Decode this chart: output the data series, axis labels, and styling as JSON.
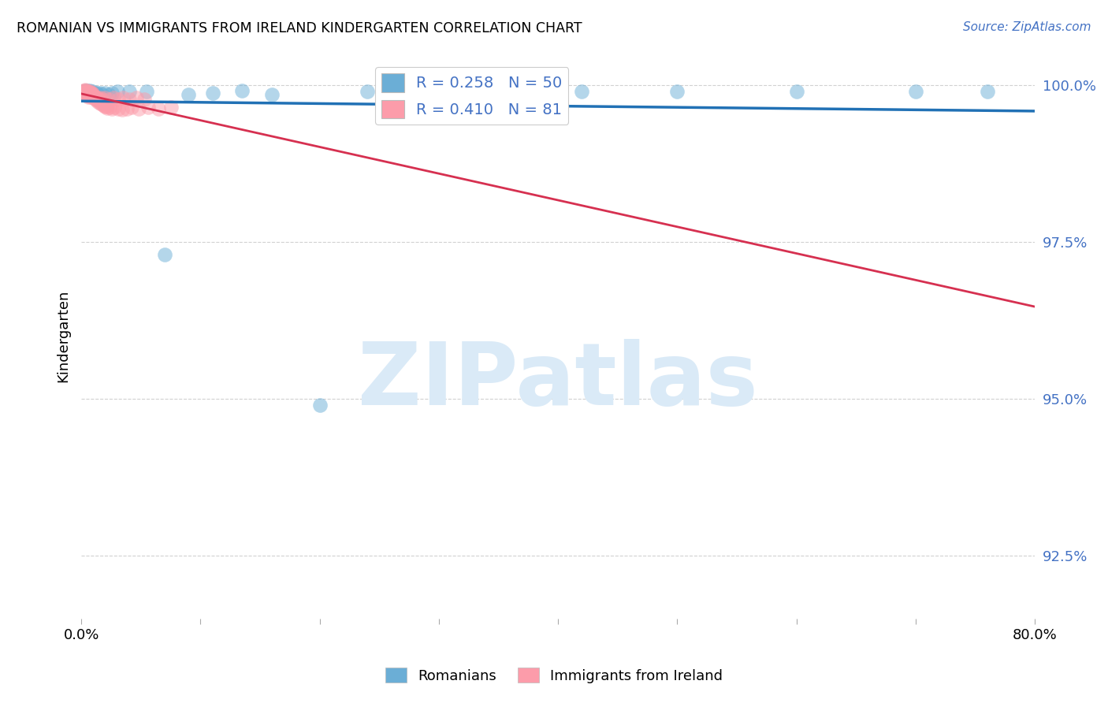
{
  "title": "ROMANIAN VS IMMIGRANTS FROM IRELAND KINDERGARTEN CORRELATION CHART",
  "source_text": "Source: ZipAtlas.com",
  "ylabel": "Kindergarten",
  "xlim": [
    0.0,
    0.8
  ],
  "ylim": [
    0.915,
    1.005
  ],
  "yticks": [
    1.0,
    0.975,
    0.95,
    0.925
  ],
  "ytick_labels": [
    "100.0%",
    "97.5%",
    "95.0%",
    "92.5%"
  ],
  "xticks": [
    0.0,
    0.1,
    0.2,
    0.3,
    0.4,
    0.5,
    0.6,
    0.7,
    0.8
  ],
  "xtick_labels": [
    "0.0%",
    "",
    "",
    "",
    "",
    "",
    "",
    "",
    "80.0%"
  ],
  "blue_label": "Romanians",
  "pink_label": "Immigrants from Ireland",
  "blue_R": 0.258,
  "blue_N": 50,
  "pink_R": 0.41,
  "pink_N": 81,
  "blue_color": "#6baed6",
  "pink_color": "#fc9caa",
  "blue_line_color": "#2171b5",
  "pink_line_color": "#d63050",
  "background_color": "#ffffff",
  "watermark_text": "ZIPatlas",
  "watermark_color": "#daeaf7",
  "blue_x": [
    0.001,
    0.001,
    0.002,
    0.002,
    0.002,
    0.003,
    0.003,
    0.003,
    0.004,
    0.004,
    0.004,
    0.005,
    0.005,
    0.005,
    0.006,
    0.006,
    0.007,
    0.007,
    0.008,
    0.008,
    0.009,
    0.009,
    0.01,
    0.01,
    0.011,
    0.012,
    0.013,
    0.014,
    0.016,
    0.018,
    0.02,
    0.023,
    0.026,
    0.03,
    0.04,
    0.055,
    0.07,
    0.09,
    0.11,
    0.135,
    0.16,
    0.2,
    0.24,
    0.29,
    0.35,
    0.42,
    0.5,
    0.6,
    0.7,
    0.76
  ],
  "blue_y": [
    0.999,
    0.9985,
    0.9988,
    0.999,
    0.9985,
    0.9992,
    0.9988,
    0.9985,
    0.999,
    0.9988,
    0.9985,
    0.9992,
    0.9988,
    0.9985,
    0.9988,
    0.9985,
    0.9992,
    0.9988,
    0.9988,
    0.9985,
    0.999,
    0.9988,
    0.9985,
    0.9988,
    0.9985,
    0.9988,
    0.9988,
    0.9985,
    0.9988,
    0.9985,
    0.9988,
    0.9985,
    0.9988,
    0.999,
    0.999,
    0.999,
    0.973,
    0.9985,
    0.9988,
    0.9992,
    0.9985,
    0.949,
    0.999,
    0.999,
    0.999,
    0.999,
    0.999,
    0.999,
    0.999,
    0.999
  ],
  "pink_x": [
    0.001,
    0.001,
    0.002,
    0.002,
    0.002,
    0.003,
    0.003,
    0.003,
    0.003,
    0.004,
    0.004,
    0.004,
    0.005,
    0.005,
    0.005,
    0.006,
    0.006,
    0.006,
    0.007,
    0.007,
    0.007,
    0.008,
    0.008,
    0.009,
    0.009,
    0.01,
    0.01,
    0.011,
    0.012,
    0.013,
    0.014,
    0.015,
    0.016,
    0.017,
    0.018,
    0.019,
    0.02,
    0.021,
    0.022,
    0.024,
    0.026,
    0.028,
    0.031,
    0.034,
    0.038,
    0.042,
    0.048,
    0.056,
    0.065,
    0.075,
    0.001,
    0.002,
    0.002,
    0.003,
    0.004,
    0.004,
    0.005,
    0.005,
    0.006,
    0.006,
    0.007,
    0.007,
    0.008,
    0.008,
    0.009,
    0.009,
    0.01,
    0.011,
    0.012,
    0.013,
    0.014,
    0.016,
    0.018,
    0.02,
    0.023,
    0.027,
    0.031,
    0.035,
    0.04,
    0.046,
    0.053
  ],
  "pink_y": [
    0.999,
    0.9985,
    0.9992,
    0.9988,
    0.9985,
    0.9993,
    0.999,
    0.9988,
    0.9985,
    0.9992,
    0.9988,
    0.9985,
    0.999,
    0.9988,
    0.9984,
    0.999,
    0.9988,
    0.9984,
    0.999,
    0.9988,
    0.9984,
    0.9988,
    0.9984,
    0.9988,
    0.9984,
    0.9984,
    0.9982,
    0.998,
    0.9978,
    0.9976,
    0.9974,
    0.9978,
    0.9972,
    0.997,
    0.9972,
    0.9968,
    0.9966,
    0.9966,
    0.9964,
    0.9965,
    0.9963,
    0.9965,
    0.9963,
    0.9962,
    0.9963,
    0.9965,
    0.9963,
    0.9965,
    0.9963,
    0.9965,
    0.9988,
    0.9986,
    0.9988,
    0.9986,
    0.9988,
    0.9984,
    0.9988,
    0.9984,
    0.9986,
    0.9982,
    0.9988,
    0.9984,
    0.9986,
    0.9982,
    0.9986,
    0.9982,
    0.9984,
    0.9982,
    0.9982,
    0.998,
    0.9978,
    0.998,
    0.9978,
    0.998,
    0.9978,
    0.998,
    0.9978,
    0.998,
    0.9978,
    0.998,
    0.9978
  ]
}
